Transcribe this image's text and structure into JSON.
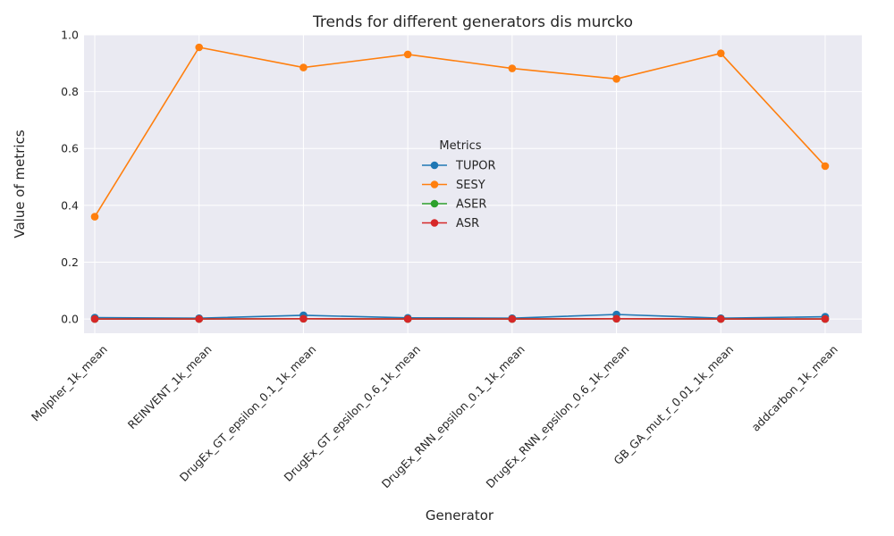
{
  "chart_data": {
    "type": "line",
    "title": "Trends for different generators dis murcko",
    "xlabel": "Generator",
    "ylabel": "Value of metrics",
    "categories": [
      "Molpher_1k_mean",
      "REINVENT_1k_mean",
      "DrugEx_GT_epsilon_0.1_1k_mean",
      "DrugEx_GT_epsilon_0.6_1k_mean",
      "DrugEx_RNN_epsilon_0.1_1k_mean",
      "DrugEx_RNN_epsilon_0.6_1k_mean",
      "GB_GA_mut_r_0.01_1k_mean",
      "addcarbon_1k_mean"
    ],
    "ylim": [
      -0.05,
      1.0
    ],
    "yticks": [
      "0.0",
      "0.2",
      "0.4",
      "0.6",
      "0.8",
      "1.0"
    ],
    "grid": true,
    "legend": {
      "title": "Metrics",
      "placement": "center"
    },
    "series": [
      {
        "name": "TUPOR",
        "color": "#1f77b4",
        "values": [
          0.005,
          0.003,
          0.013,
          0.004,
          0.003,
          0.016,
          0.003,
          0.008
        ]
      },
      {
        "name": "SESY",
        "color": "#ff7f0e",
        "values": [
          0.36,
          0.956,
          0.885,
          0.931,
          0.882,
          0.845,
          0.935,
          0.538
        ]
      },
      {
        "name": "ASER",
        "color": "#2ca02c",
        "values": [
          0.0,
          0.0,
          0.001,
          0.0,
          0.0,
          0.001,
          0.0,
          0.0
        ]
      },
      {
        "name": "ASR",
        "color": "#d62728",
        "values": [
          0.0,
          0.0,
          0.001,
          0.0,
          0.0,
          0.001,
          0.0,
          0.0
        ]
      }
    ]
  }
}
